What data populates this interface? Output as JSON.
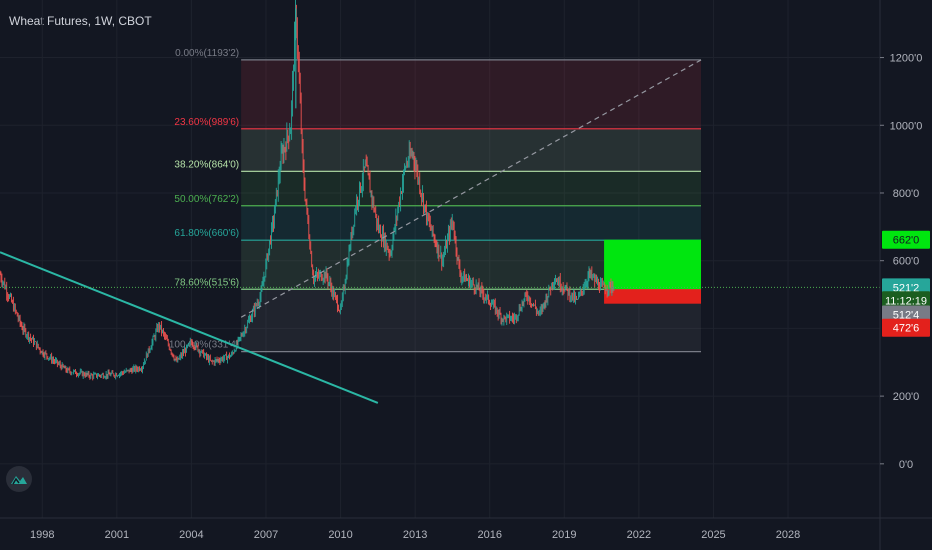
{
  "header": {
    "symbol_title": "Wheat Futures, 1W, CBOT"
  },
  "colors": {
    "background": "#131722",
    "grid": "#1e222d",
    "candle_up": "#26a69a",
    "candle_down": "#ef5350",
    "trendline": "#2bb7a5",
    "fib_0": "#787b86",
    "fib_236": "#f23645",
    "fib_382": "#b5e2a8",
    "fib_500": "#4caf50",
    "fib_618": "#26a69a",
    "fib_786": "#81c784",
    "fib_100": "#787b86",
    "long_target": "#00e60f",
    "long_stop": "#e3211c",
    "price_dotted": "#4caf50"
  },
  "chart_data": {
    "type": "candlestick",
    "title": "Wheat Futures, 1W, CBOT",
    "x_ticks": [
      "1998",
      "2001",
      "2004",
      "2007",
      "2010",
      "2013",
      "2016",
      "2019",
      "2022",
      "2025",
      "2028"
    ],
    "y_ticks": [
      "1200'0",
      "1000'0",
      "800'0",
      "600'0",
      "200'0",
      "0'0"
    ],
    "xlim": [
      1996.3,
      2031.7
    ],
    "ylim": [
      -160,
      1370
    ],
    "grid": true,
    "price_series": {
      "name": "Wheat Futures",
      "points": [
        [
          1996.3,
          560
        ],
        [
          1997.2,
          400
        ],
        [
          1998.0,
          330
        ],
        [
          1999.0,
          275
        ],
        [
          2000.0,
          260
        ],
        [
          2001.0,
          265
        ],
        [
          2002.0,
          285
        ],
        [
          2002.7,
          410
        ],
        [
          2003.4,
          300
        ],
        [
          2004.0,
          360
        ],
        [
          2004.8,
          300
        ],
        [
          2005.6,
          320
        ],
        [
          2006.3,
          420
        ],
        [
          2006.8,
          500
        ],
        [
          2007.3,
          720
        ],
        [
          2007.6,
          900
        ],
        [
          2008.0,
          1000
        ],
        [
          2008.2,
          1345
        ],
        [
          2008.5,
          850
        ],
        [
          2008.9,
          550
        ],
        [
          2009.4,
          560
        ],
        [
          2010.0,
          450
        ],
        [
          2010.6,
          760
        ],
        [
          2011.0,
          880
        ],
        [
          2011.5,
          700
        ],
        [
          2012.0,
          620
        ],
        [
          2012.6,
          880
        ],
        [
          2012.9,
          920
        ],
        [
          2013.5,
          720
        ],
        [
          2014.1,
          600
        ],
        [
          2014.5,
          720
        ],
        [
          2014.8,
          560
        ],
        [
          2015.5,
          520
        ],
        [
          2016.0,
          480
        ],
        [
          2016.5,
          430
        ],
        [
          2017.0,
          430
        ],
        [
          2017.5,
          500
        ],
        [
          2018.0,
          440
        ],
        [
          2018.6,
          550
        ],
        [
          2019.0,
          520
        ],
        [
          2019.5,
          480
        ],
        [
          2020.0,
          560
        ],
        [
          2020.5,
          520
        ],
        [
          2021.0,
          525
        ]
      ]
    },
    "trendlines": [
      {
        "from": [
          1996.3,
          625
        ],
        "to": [
          2011.5,
          180
        ],
        "style": "solid"
      },
      {
        "from": [
          2006.0,
          433
        ],
        "to": [
          2024.5,
          1193
        ],
        "style": "dashed"
      }
    ],
    "fib_retracement": {
      "x_range": [
        2006.0,
        2024.5
      ],
      "levels": [
        {
          "ratio": "0.00%",
          "price": 1193.2,
          "label": "0.00%(1193'2)",
          "color": "#787b86"
        },
        {
          "ratio": "23.60%",
          "price": 989.6,
          "label": "23.60%(989'6)",
          "color": "#f23645"
        },
        {
          "ratio": "38.20%",
          "price": 864.0,
          "label": "38.20%(864'0)",
          "color": "#b5e2a8"
        },
        {
          "ratio": "50.00%",
          "price": 762.2,
          "label": "50.00%(762'2)",
          "color": "#4caf50"
        },
        {
          "ratio": "61.80%",
          "price": 660.6,
          "label": "61.80%(660'6)",
          "color": "#26a69a"
        },
        {
          "ratio": "78.60%",
          "price": 515.6,
          "label": "78.60%(515'6)",
          "color": "#81c784"
        },
        {
          "ratio": "100.00%",
          "price": 331.4,
          "label": "100.00%(331'4)",
          "color": "#787b86"
        }
      ]
    },
    "long_position": {
      "x_range": [
        2020.6,
        2024.5
      ],
      "entry": 516,
      "target": 662,
      "stop": 473
    },
    "price_labels": [
      {
        "text": "662'0",
        "price": 662,
        "bg": "#00e60f",
        "fg": "#131722"
      },
      {
        "text": "521'2",
        "price": 521.2,
        "bg": "#26a69a",
        "fg": "#ffffff"
      },
      {
        "text": "11:12:19",
        "price": 483,
        "bg": "#1b5e20",
        "fg": "#ffffff"
      },
      {
        "text": "512'4",
        "price": 441,
        "bg": "#787b86",
        "fg": "#ffffff"
      },
      {
        "text": "472'6",
        "price": 402,
        "bg": "#e3211c",
        "fg": "#ffffff"
      }
    ]
  }
}
